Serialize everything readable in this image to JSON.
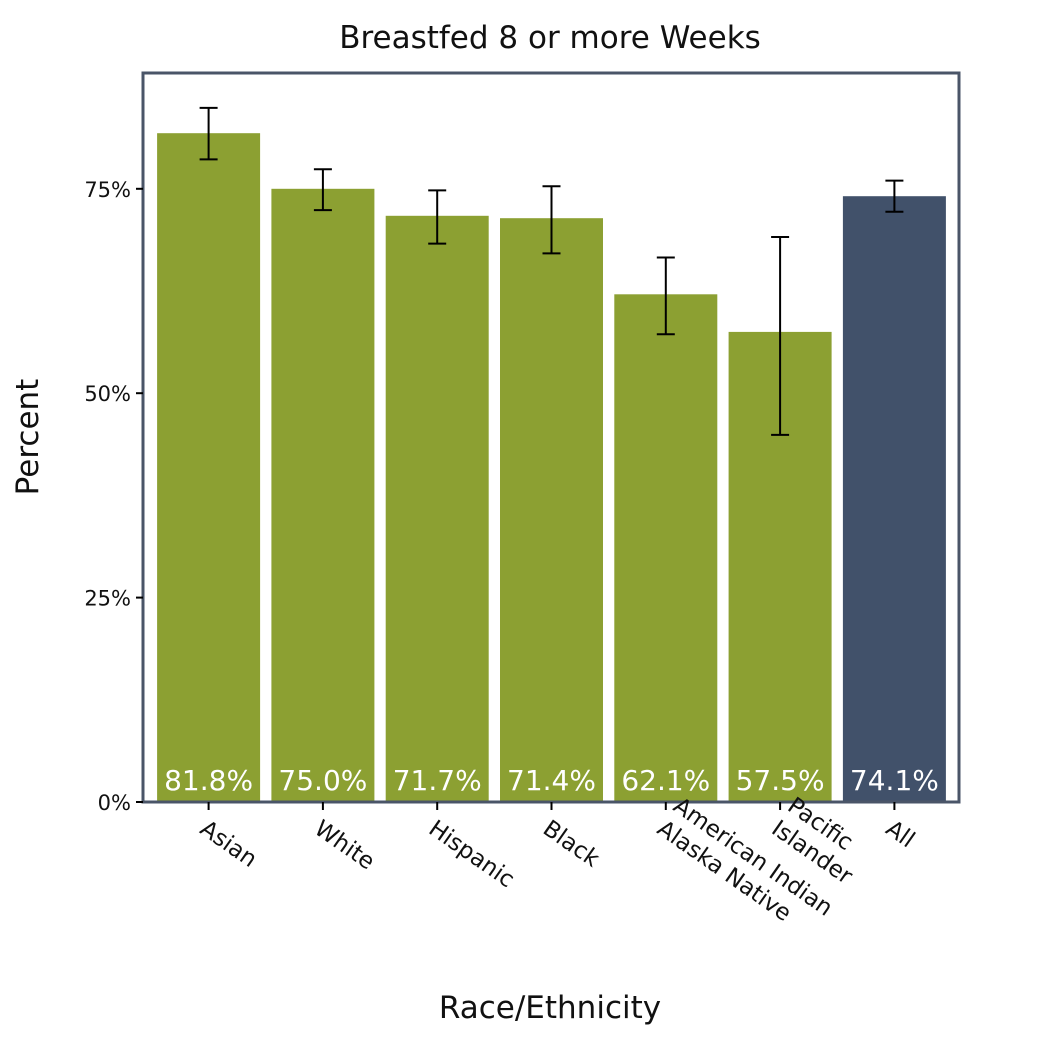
{
  "chart_data": {
    "type": "bar",
    "title": "Breastfed 8 or more Weeks",
    "xlabel": "Race/Ethnicity",
    "ylabel": "Percent",
    "ylim": [
      0,
      0.9
    ],
    "yticks": [
      {
        "value": 0,
        "label": "0%"
      },
      {
        "value": 0.25,
        "label": "25%"
      },
      {
        "value": 0.5,
        "label": "50%"
      },
      {
        "value": 0.75,
        "label": "75%"
      }
    ],
    "categories": [
      [
        "Asian"
      ],
      [
        "White"
      ],
      [
        "Hispanic"
      ],
      [
        "Black"
      ],
      [
        "American Indian",
        "Alaska Native"
      ],
      [
        "Pacific",
        "Islander"
      ],
      [
        "All"
      ]
    ],
    "values": [
      0.818,
      0.75,
      0.717,
      0.714,
      0.621,
      0.575,
      0.741
    ],
    "value_labels": [
      "81.8%",
      "75.0%",
      "71.7%",
      "71.4%",
      "62.1%",
      "57.5%",
      "74.1%"
    ],
    "error_low": [
      0.786,
      0.724,
      0.683,
      0.671,
      0.572,
      0.449,
      0.722
    ],
    "error_high": [
      0.849,
      0.774,
      0.748,
      0.753,
      0.666,
      0.691,
      0.76
    ],
    "colors": [
      "#8ca032",
      "#8ca032",
      "#8ca032",
      "#8ca032",
      "#8ca032",
      "#8ca032",
      "#41516a"
    ],
    "frame_color": "#4a5568",
    "grid": false,
    "legend": "none"
  }
}
